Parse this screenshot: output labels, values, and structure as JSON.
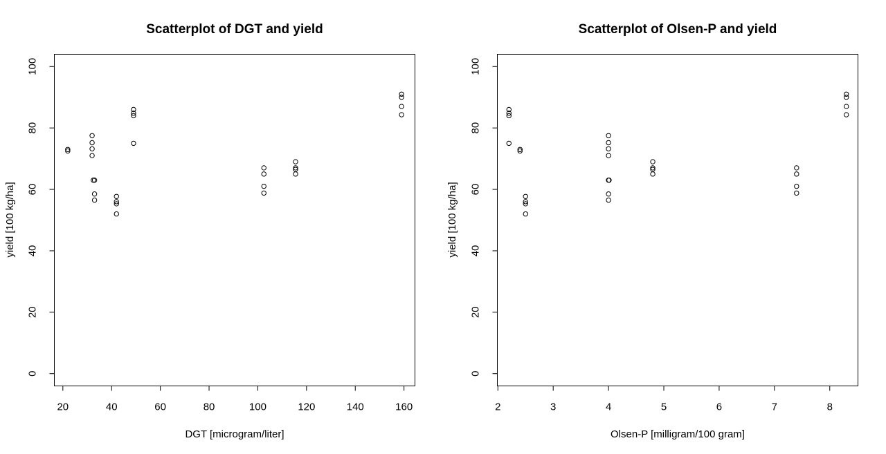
{
  "chart_data": [
    {
      "type": "scatter",
      "title": "Scatterplot of DGT and yield",
      "xlabel": "DGT [microgram/liter]",
      "ylabel": "yield [100 kg/ha]",
      "xlim": [
        16.5,
        164.5
      ],
      "ylim": [
        -4,
        104
      ],
      "xticks": [
        "20",
        "40",
        "60",
        "80",
        "100",
        "120",
        "140",
        "160"
      ],
      "yticks": [
        "0",
        "20",
        "40",
        "60",
        "80",
        "100"
      ],
      "grid": false,
      "points": [
        {
          "x": 22,
          "y": 72.5
        },
        {
          "x": 22,
          "y": 73
        },
        {
          "x": 32,
          "y": 77.5
        },
        {
          "x": 32,
          "y": 75.2
        },
        {
          "x": 32,
          "y": 73.2
        },
        {
          "x": 32,
          "y": 71
        },
        {
          "x": 33,
          "y": 63
        },
        {
          "x": 32.5,
          "y": 63
        },
        {
          "x": 33,
          "y": 58.5
        },
        {
          "x": 33,
          "y": 56.5
        },
        {
          "x": 42,
          "y": 57.7
        },
        {
          "x": 42,
          "y": 56
        },
        {
          "x": 42,
          "y": 55.3
        },
        {
          "x": 42,
          "y": 52
        },
        {
          "x": 49,
          "y": 86
        },
        {
          "x": 49,
          "y": 84.8
        },
        {
          "x": 49,
          "y": 84
        },
        {
          "x": 49,
          "y": 75
        },
        {
          "x": 102.5,
          "y": 67
        },
        {
          "x": 102.5,
          "y": 65
        },
        {
          "x": 102.5,
          "y": 61
        },
        {
          "x": 102.5,
          "y": 58.8
        },
        {
          "x": 115.5,
          "y": 69
        },
        {
          "x": 115.5,
          "y": 67
        },
        {
          "x": 115.5,
          "y": 66.5
        },
        {
          "x": 115.5,
          "y": 65
        },
        {
          "x": 159,
          "y": 91
        },
        {
          "x": 159,
          "y": 90
        },
        {
          "x": 159,
          "y": 87
        },
        {
          "x": 159,
          "y": 84.3
        }
      ]
    },
    {
      "type": "scatter",
      "title": "Scatterplot of Olsen-P and yield",
      "xlabel": "Olsen-P [milligram/100 gram]",
      "ylabel": "yield [100 kg/ha]",
      "xlim": [
        1.99,
        8.51
      ],
      "ylim": [
        -4,
        104
      ],
      "xticks": [
        "2",
        "3",
        "4",
        "5",
        "6",
        "7",
        "8"
      ],
      "yticks": [
        "0",
        "20",
        "40",
        "60",
        "80",
        "100"
      ],
      "grid": false,
      "points": [
        {
          "x": 2.2,
          "y": 86
        },
        {
          "x": 2.2,
          "y": 84.8
        },
        {
          "x": 2.2,
          "y": 84
        },
        {
          "x": 2.2,
          "y": 75
        },
        {
          "x": 2.4,
          "y": 72.5
        },
        {
          "x": 2.4,
          "y": 73
        },
        {
          "x": 2.5,
          "y": 57.7
        },
        {
          "x": 2.5,
          "y": 56
        },
        {
          "x": 2.5,
          "y": 55.3
        },
        {
          "x": 2.5,
          "y": 52
        },
        {
          "x": 4.0,
          "y": 77.5
        },
        {
          "x": 4.0,
          "y": 75.2
        },
        {
          "x": 4.0,
          "y": 73.2
        },
        {
          "x": 4.0,
          "y": 71
        },
        {
          "x": 4.0,
          "y": 63
        },
        {
          "x": 4.01,
          "y": 63
        },
        {
          "x": 4.0,
          "y": 58.5
        },
        {
          "x": 4.0,
          "y": 56.5
        },
        {
          "x": 4.8,
          "y": 69
        },
        {
          "x": 4.8,
          "y": 67
        },
        {
          "x": 4.8,
          "y": 66.5
        },
        {
          "x": 4.8,
          "y": 65
        },
        {
          "x": 7.4,
          "y": 67
        },
        {
          "x": 7.4,
          "y": 65
        },
        {
          "x": 7.4,
          "y": 61
        },
        {
          "x": 7.4,
          "y": 58.8
        },
        {
          "x": 8.3,
          "y": 91
        },
        {
          "x": 8.3,
          "y": 90
        },
        {
          "x": 8.3,
          "y": 87
        },
        {
          "x": 8.3,
          "y": 84.3
        }
      ]
    }
  ]
}
